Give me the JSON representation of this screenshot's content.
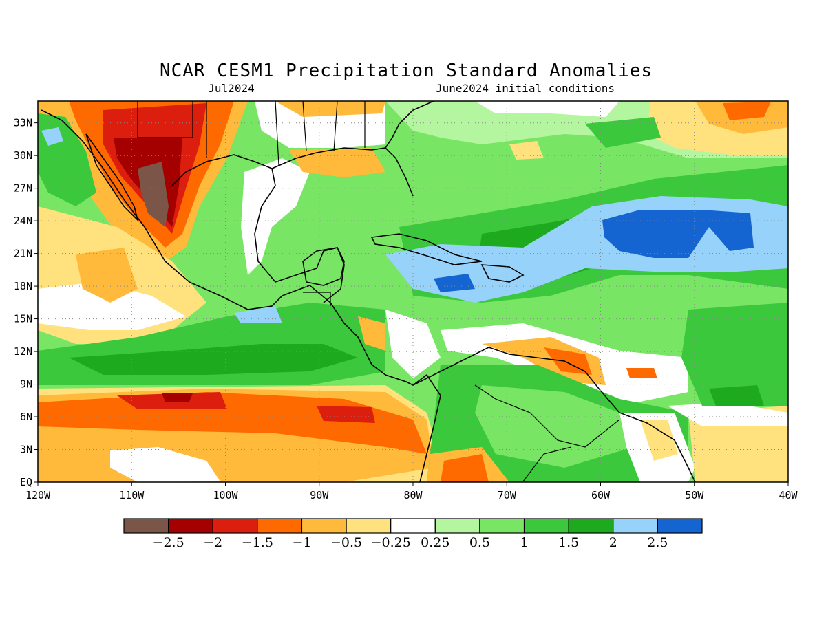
{
  "figure": {
    "title": "NCAR_CESM1 Precipitation Standard Anomalies",
    "left_subtitle": "Jul2024",
    "right_subtitle": "June2024 initial conditions"
  },
  "axes": {
    "x_ticks": [
      "120W",
      "110W",
      "100W",
      "90W",
      "80W",
      "70W",
      "60W",
      "50W",
      "40W"
    ],
    "y_ticks": [
      "EQ",
      "3N",
      "6N",
      "9N",
      "12N",
      "15N",
      "18N",
      "21N",
      "24N",
      "27N",
      "30N",
      "33N"
    ],
    "lon_range": [
      -120,
      -40
    ],
    "lat_range": [
      0,
      35
    ],
    "grid": "dotted"
  },
  "colorbar": {
    "colors": [
      "#7a5548",
      "#a50000",
      "#dc1e0f",
      "#ff6a00",
      "#ffba3c",
      "#ffe17d",
      "#ffffff",
      "#b4f5a0",
      "#78e664",
      "#3cc83c",
      "#1eaa1e",
      "#96d2fa",
      "#1464d2"
    ],
    "labels": [
      "−2.5",
      "−2",
      "−1.5",
      "−1",
      "−0.5",
      "−0.25",
      "0.25",
      "0.5",
      "1",
      "1.5",
      "2",
      "2.5"
    ]
  }
}
